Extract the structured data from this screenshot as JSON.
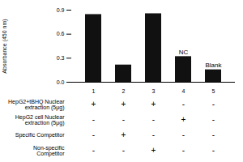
{
  "chart_data": {
    "type": "bar",
    "categories": [
      "1",
      "2",
      "3",
      "4",
      "5"
    ],
    "values": [
      0.845,
      0.215,
      0.855,
      0.32,
      0.155
    ],
    "color": "#111111",
    "ylabel": "Absorbance (450 nm)",
    "ylim": [
      0,
      0.9
    ],
    "yticks": [
      {
        "value": 0,
        "label": "0.0"
      },
      0.3,
      0.6,
      0.9
    ],
    "annotations": [
      {
        "text": "NC",
        "category": "4"
      },
      {
        "text": "Blank",
        "category": "5"
      }
    ],
    "table_rows": [
      {
        "label": "HepG2+tBHQ Nuclear\nextraction (5μg)",
        "signs": [
          "+",
          "+",
          "+",
          "-",
          "-"
        ]
      },
      {
        "label": "HepG2 cell Nuclear\nextraction (5μg)",
        "signs": [
          "-",
          "-",
          "-",
          "+",
          "-"
        ]
      },
      {
        "label": "Specific Competitor",
        "signs": [
          "-",
          "+",
          "-",
          "-",
          "-"
        ]
      },
      {
        "label": "Non-specific\nCompetitor",
        "signs": [
          "-",
          "-",
          "+",
          "-",
          "-"
        ]
      }
    ]
  }
}
